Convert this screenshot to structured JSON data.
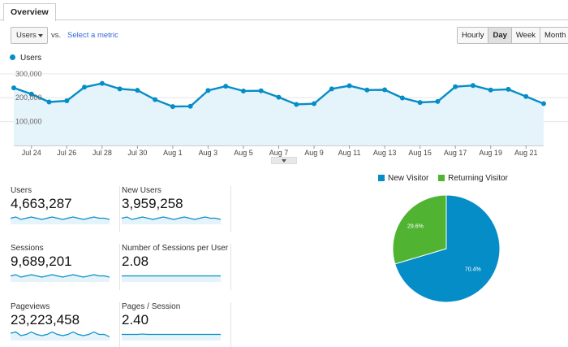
{
  "tabs": {
    "overview": "Overview"
  },
  "toolbar": {
    "metric_select": "Users",
    "vs_label": "vs.",
    "select_metric_link": "Select a metric",
    "granularity": [
      "Hourly",
      "Day",
      "Week",
      "Month"
    ],
    "granularity_selected": "Day"
  },
  "colors": {
    "series_line": "#058dc7",
    "series_fill": "#e5f3fa",
    "new_visitor": "#058dc7",
    "returning_visitor": "#50b432"
  },
  "chart_data": [
    {
      "type": "line",
      "legend": [
        "Users"
      ],
      "x_tick_labels": [
        "Jul 24",
        "Jul 26",
        "Jul 28",
        "Jul 30",
        "Aug 1",
        "Aug 3",
        "Aug 5",
        "Aug 7",
        "Aug 9",
        "Aug 11",
        "Aug 13",
        "Aug 15",
        "Aug 17",
        "Aug 19",
        "Aug 21"
      ],
      "y_tick_labels": [
        "300,000",
        "200,000",
        "100,000"
      ],
      "ylim": [
        0,
        330000
      ],
      "area": true,
      "grid": true,
      "series": [
        {
          "name": "Users",
          "values": [
            241000,
            215000,
            182000,
            187000,
            244000,
            260000,
            237000,
            231000,
            192000,
            163000,
            164000,
            230000,
            248000,
            228000,
            229000,
            202000,
            172000,
            175000,
            237000,
            250000,
            232000,
            233000,
            199000,
            180000,
            184000,
            246000,
            251000,
            232000,
            235000,
            205000,
            175000
          ]
        }
      ]
    },
    {
      "type": "pie",
      "legend": [
        "New Visitor",
        "Returning Visitor"
      ],
      "slices": [
        {
          "name": "New Visitor",
          "value": 70.4,
          "label": "70.4%"
        },
        {
          "name": "Returning Visitor",
          "value": 29.6,
          "label": "29.6%"
        }
      ]
    }
  ],
  "metrics": [
    {
      "label": "Users",
      "value": "4,663,287",
      "sparkline": [
        5,
        6,
        4,
        5,
        6,
        5,
        4,
        5,
        6,
        5,
        4,
        5,
        6,
        5,
        4,
        5,
        6,
        5,
        5,
        4
      ]
    },
    {
      "label": "New Users",
      "value": "3,959,258",
      "sparkline": [
        5,
        6,
        4,
        5,
        6,
        5,
        4,
        5,
        6,
        5,
        4,
        5,
        6,
        5,
        4,
        5,
        6,
        5,
        5,
        4
      ]
    },
    {
      "label": "Sessions",
      "value": "9,689,201",
      "sparkline": [
        5,
        6,
        4,
        5,
        6,
        5,
        4,
        5,
        6,
        5,
        4,
        5,
        6,
        5,
        4,
        5,
        6,
        5,
        5,
        4
      ]
    },
    {
      "label": "Number of Sessions per User",
      "value": "2.08",
      "sparkline": [
        5,
        5,
        5,
        5,
        5,
        5,
        5,
        5,
        5,
        5,
        5,
        5,
        5,
        5,
        5,
        5,
        5,
        5,
        5,
        5
      ]
    },
    {
      "label": "Pageviews",
      "value": "23,223,458",
      "sparkline": [
        6,
        7,
        4,
        5,
        7,
        5,
        4,
        5,
        7,
        5,
        4,
        5,
        7,
        5,
        4,
        5,
        7,
        5,
        5,
        3
      ]
    },
    {
      "label": "Pages / Session",
      "value": "2.40",
      "sparkline": [
        5,
        5,
        5,
        5,
        5.3,
        5,
        5,
        5,
        5,
        5,
        5,
        5,
        5,
        5,
        5,
        5,
        5,
        5,
        5,
        5
      ]
    }
  ]
}
